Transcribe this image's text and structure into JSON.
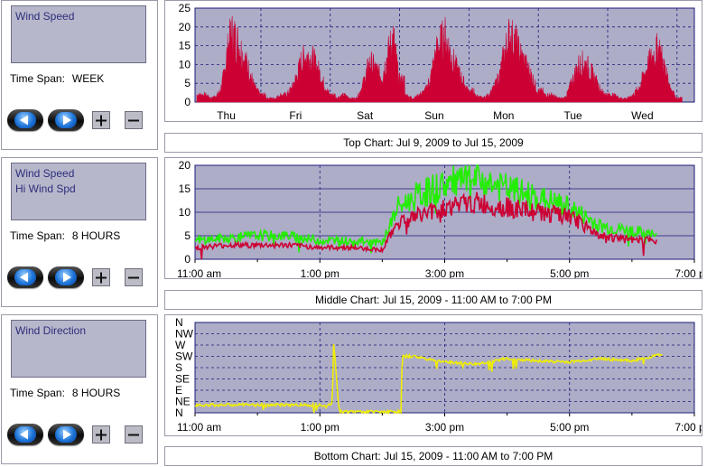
{
  "panels": [
    {
      "legend": [
        "Wind Speed"
      ],
      "time_span_label": "Time Span:",
      "time_span_value": "WEEK",
      "caption": "Top Chart:  Jul 9, 2009  to  Jul 15, 2009"
    },
    {
      "legend": [
        "Wind Speed",
        "Hi Wind Spd"
      ],
      "time_span_label": "Time Span:",
      "time_span_value": "8 HOURS",
      "caption": "Middle Chart:  Jul 15, 2009 - 11:00 AM  to  7:00 PM"
    },
    {
      "legend": [
        "Wind Direction"
      ],
      "time_span_label": "Time Span:",
      "time_span_value": "8 HOURS",
      "caption": "Bottom Chart:  Jul 15, 2009 - 11:00 AM  to  7:00 PM"
    }
  ],
  "buttons": {
    "back_icon": "left-arrow-icon",
    "forward_icon": "right-arrow-icon",
    "zoom_in_icon": "plus-icon",
    "zoom_out_icon": "minus-icon"
  },
  "colors": {
    "plot_bg": "#adadc8",
    "grid": "#1c1c78",
    "wind_speed": "#cc0033",
    "hi_wind_speed": "#22ee00",
    "wind_direction": "#f0ee00"
  },
  "chart_data": [
    {
      "type": "area",
      "x_categories": [
        "Thu",
        "Fri",
        "Sat",
        "Sun",
        "Mon",
        "Tue",
        "Wed"
      ],
      "ylim": [
        0,
        25
      ],
      "yticks": [
        0,
        5,
        10,
        15,
        20,
        25
      ],
      "grid": true,
      "series": [
        {
          "name": "Wind Speed",
          "day_hour": [
            0,
            3,
            5,
            7,
            8,
            9,
            10,
            11,
            12,
            14,
            16,
            18,
            20,
            22
          ],
          "days": [
            [
              2,
              2,
              1,
              2,
              3,
              6,
              11,
              16,
              19,
              17,
              13,
              9,
              4,
              2
            ],
            [
              1,
              1,
              2,
              2,
              3,
              4,
              6,
              8,
              11,
              13,
              12,
              9,
              5,
              2
            ],
            [
              1,
              2,
              1,
              1,
              2,
              4,
              6,
              9,
              11,
              9,
              7,
              13,
              18,
              6
            ],
            [
              2,
              1,
              2,
              3,
              5,
              7,
              11,
              14,
              16,
              18,
              13,
              9,
              6,
              3
            ],
            [
              2,
              1,
              2,
              4,
              6,
              8,
              12,
              15,
              18,
              17,
              13,
              10,
              7,
              3
            ],
            [
              2,
              2,
              1,
              1,
              2,
              4,
              6,
              8,
              10,
              11,
              9,
              6,
              3,
              2
            ],
            [
              2,
              1,
              1,
              2,
              3,
              4,
              6,
              8,
              10,
              13,
              15,
              9,
              4,
              1
            ]
          ]
        }
      ]
    },
    {
      "type": "line",
      "x": [
        11.0,
        11.5,
        12.0,
        12.5,
        13.0,
        13.5,
        14.0,
        14.25,
        14.5,
        15.0,
        15.5,
        16.0,
        16.5,
        17.0,
        17.5,
        18.0,
        18.4
      ],
      "xticks": [
        "11:00 am",
        "1:00 pm",
        "3:00 pm",
        "5:00 pm",
        "7:00 pm"
      ],
      "xtick_hours": [
        11,
        13,
        15,
        17,
        19
      ],
      "xlim": [
        11,
        19
      ],
      "ylim": [
        0,
        20
      ],
      "yticks": [
        0,
        5,
        10,
        15,
        20
      ],
      "grid": true,
      "series": [
        {
          "name": "Wind Speed",
          "values": [
            2.5,
            3,
            3,
            3,
            2.5,
            2.5,
            2,
            8,
            9,
            11,
            12,
            11,
            10,
            9,
            5,
            4,
            4
          ]
        },
        {
          "name": "Hi Wind Spd",
          "values": [
            4,
            4.5,
            5,
            5,
            4,
            4,
            3.5,
            11,
            13,
            16,
            17,
            15,
            13,
            11,
            7,
            6,
            5
          ]
        }
      ]
    },
    {
      "type": "line",
      "x": [
        11.0,
        13.2,
        13.22,
        13.3,
        13.32,
        14.0,
        14.3,
        14.32,
        14.5,
        15.0,
        15.5,
        16.0,
        16.5,
        17.0,
        17.5,
        18.0,
        18.5
      ],
      "xticks": [
        "11:00 am",
        "1:00 pm",
        "3:00 pm",
        "5:00 pm",
        "7:00 pm"
      ],
      "xtick_hours": [
        11,
        13,
        15,
        17,
        19
      ],
      "xlim": [
        11,
        19
      ],
      "ylim": [
        0,
        8
      ],
      "yticks": [
        "N",
        "NE",
        "E",
        "SE",
        "S",
        "SW",
        "W",
        "NW",
        "N"
      ],
      "grid": true,
      "series": [
        {
          "name": "Wind Direction",
          "values": [
            0.7,
            0.7,
            6.5,
            0.7,
            0.1,
            0.1,
            0.1,
            5.0,
            5.0,
            4.5,
            4.3,
            4.8,
            4.6,
            4.5,
            4.8,
            4.6,
            5.2
          ]
        }
      ]
    }
  ]
}
